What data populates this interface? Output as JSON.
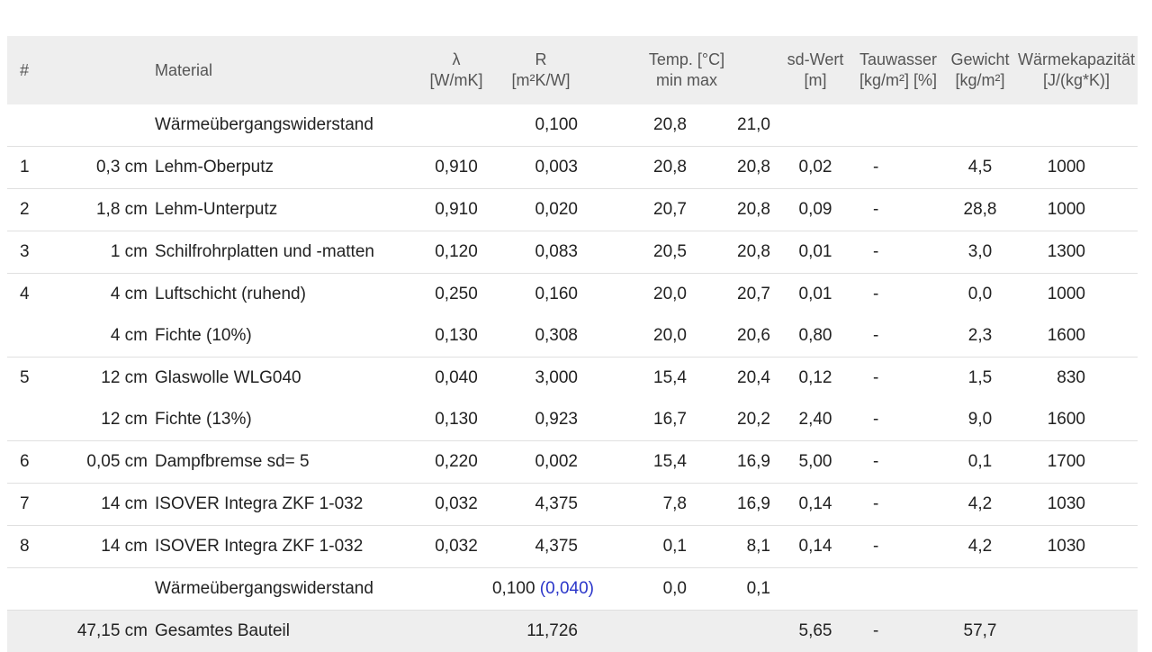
{
  "header": {
    "num": "#",
    "material": "Material",
    "lambda_symbol": "λ",
    "lambda_unit": "[W/mK]",
    "r_symbol": "R",
    "r_unit": "[m²K/W]",
    "temp_title": "Temp. [°C]",
    "temp_sub": "min max",
    "sd_title": "sd-Wert",
    "sd_unit": "[m]",
    "tau_title": "Tauwasser",
    "tau_unit": "[kg/m²] [%]",
    "gew_title": "Gewicht",
    "gew_unit": "[kg/m²]",
    "cap_title": "Wärmekapazität",
    "cap_unit": "[J/(kg*K)]"
  },
  "rows": [
    {
      "num": "",
      "thick": "",
      "mat": "Wärmeübergangswiderstand",
      "lam": "",
      "r": "0,100",
      "tmin": "20,8",
      "tmax": "21,0",
      "sd": "",
      "tau": "",
      "gew": "",
      "cap": ""
    },
    {
      "num": "1",
      "thick": "0,3 cm",
      "mat": "Lehm-Oberputz",
      "lam": "0,910",
      "r": "0,003",
      "tmin": "20,8",
      "tmax": "20,8",
      "sd": "0,02",
      "tau": "-",
      "gew": "4,5",
      "cap": "1000"
    },
    {
      "num": "2",
      "thick": "1,8 cm",
      "mat": "Lehm-Unterputz",
      "lam": "0,910",
      "r": "0,020",
      "tmin": "20,7",
      "tmax": "20,8",
      "sd": "0,09",
      "tau": "-",
      "gew": "28,8",
      "cap": "1000"
    },
    {
      "num": "3",
      "thick": "1 cm",
      "mat": "Schilfrohrplatten und -matten",
      "lam": "0,120",
      "r": "0,083",
      "tmin": "20,5",
      "tmax": "20,8",
      "sd": "0,01",
      "tau": "-",
      "gew": "3,0",
      "cap": "1300"
    },
    {
      "num": "4",
      "thick": "4 cm",
      "mat": "Luftschicht (ruhend)",
      "lam": "0,250",
      "r": "0,160",
      "tmin": "20,0",
      "tmax": "20,7",
      "sd": "0,01",
      "tau": "-",
      "gew": "0,0",
      "cap": "1000"
    },
    {
      "num": "",
      "thick": "4 cm",
      "mat": "Fichte (10%)",
      "lam": "0,130",
      "r": "0,308",
      "tmin": "20,0",
      "tmax": "20,6",
      "sd": "0,80",
      "tau": "-",
      "gew": "2,3",
      "cap": "1600"
    },
    {
      "num": "5",
      "thick": "12 cm",
      "mat": "Glaswolle WLG040",
      "lam": "0,040",
      "r": "3,000",
      "tmin": "15,4",
      "tmax": "20,4",
      "sd": "0,12",
      "tau": "-",
      "gew": "1,5",
      "cap": "830"
    },
    {
      "num": "",
      "thick": "12 cm",
      "mat": "Fichte (13%)",
      "lam": "0,130",
      "r": "0,923",
      "tmin": "16,7",
      "tmax": "20,2",
      "sd": "2,40",
      "tau": "-",
      "gew": "9,0",
      "cap": "1600"
    },
    {
      "num": "6",
      "thick": "0,05 cm",
      "mat": "Dampfbremse sd= 5",
      "lam": "0,220",
      "r": "0,002",
      "tmin": "15,4",
      "tmax": "16,9",
      "sd": "5,00",
      "tau": "-",
      "gew": "0,1",
      "cap": "1700"
    },
    {
      "num": "7",
      "thick": "14 cm",
      "mat": "ISOVER Integra ZKF 1-032",
      "lam": "0,032",
      "r": "4,375",
      "tmin": "7,8",
      "tmax": "16,9",
      "sd": "0,14",
      "tau": "-",
      "gew": "4,2",
      "cap": "1030"
    },
    {
      "num": "8",
      "thick": "14 cm",
      "mat": "ISOVER Integra ZKF 1-032",
      "lam": "0,032",
      "r": "4,375",
      "tmin": "0,1",
      "tmax": "8,1",
      "sd": "0,14",
      "tau": "-",
      "gew": "4,2",
      "cap": "1030"
    }
  ],
  "outer_row": {
    "mat": "Wärmeübergangswiderstand",
    "r": "0,100",
    "r_alt": "(0,040)",
    "tmin": "0,0",
    "tmax": "0,1"
  },
  "total": {
    "thick": "47,15 cm",
    "mat": "Gesamtes Bauteil",
    "r": "11,726",
    "sd": "5,65",
    "tau": "-",
    "gew": "57,7"
  },
  "colors": {
    "header_bg": "#eeeeee",
    "alt_value": "#2a35c9"
  }
}
